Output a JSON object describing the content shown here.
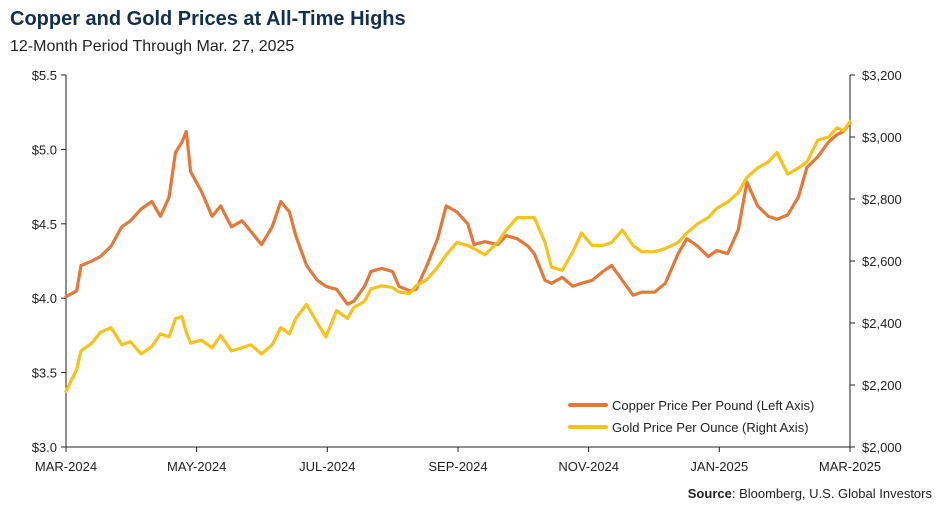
{
  "title": "Copper and Gold Prices at All-Time Highs",
  "subtitle": "12-Month Period Through Mar. 27, 2025",
  "source_label": "Source",
  "source_text": ": Bloomberg, U.S. Global Investors",
  "colors": {
    "copper": "#e2783a",
    "gold": "#f7c21b",
    "axis": "#222222"
  },
  "chart_data": {
    "type": "line",
    "x_ticks": [
      "MAR-2024",
      "MAY-2024",
      "JUL-2024",
      "SEP-2024",
      "NOV-2024",
      "JAN-2025",
      "MAR-2025"
    ],
    "left_axis": {
      "ticks": [
        "$3.0",
        "$3.5",
        "$4.0",
        "$4.5",
        "$5.0",
        "$5.5"
      ],
      "range": [
        3.0,
        5.5
      ]
    },
    "right_axis": {
      "ticks": [
        "$2,000",
        "$2,200",
        "$2,400",
        "$2,600",
        "$2,800",
        "$3,000",
        "$3,200"
      ],
      "range": [
        2000,
        3200
      ]
    },
    "x_range": [
      "2024-03-27",
      "2025-03-27"
    ],
    "grid": false,
    "legend_position": "bottom-right",
    "series": [
      {
        "name": "Copper Price Per Pound (Left Axis)",
        "axis": "left",
        "dates": [
          "2024-03-27",
          "2024-04-01",
          "2024-04-03",
          "2024-04-08",
          "2024-04-12",
          "2024-04-17",
          "2024-04-22",
          "2024-04-26",
          "2024-05-01",
          "2024-05-06",
          "2024-05-10",
          "2024-05-14",
          "2024-05-17",
          "2024-05-20",
          "2024-05-22",
          "2024-05-24",
          "2024-05-29",
          "2024-06-03",
          "2024-06-07",
          "2024-06-12",
          "2024-06-17",
          "2024-06-21",
          "2024-06-26",
          "2024-07-01",
          "2024-07-05",
          "2024-07-09",
          "2024-07-12",
          "2024-07-17",
          "2024-07-22",
          "2024-07-26",
          "2024-07-31",
          "2024-08-05",
          "2024-08-08",
          "2024-08-13",
          "2024-08-16",
          "2024-08-21",
          "2024-08-26",
          "2024-08-29",
          "2024-09-03",
          "2024-09-06",
          "2024-09-11",
          "2024-09-16",
          "2024-09-20",
          "2024-09-25",
          "2024-09-30",
          "2024-10-03",
          "2024-10-08",
          "2024-10-14",
          "2024-10-18",
          "2024-10-23",
          "2024-10-28",
          "2024-10-31",
          "2024-11-05",
          "2024-11-08",
          "2024-11-13",
          "2024-11-18",
          "2024-11-22",
          "2024-11-27",
          "2024-12-02",
          "2024-12-06",
          "2024-12-11",
          "2024-12-16",
          "2024-12-20",
          "2024-12-26",
          "2024-12-31",
          "2025-01-06",
          "2025-01-10",
          "2025-01-15",
          "2025-01-20",
          "2025-01-24",
          "2025-01-29",
          "2025-02-03",
          "2025-02-07",
          "2025-02-12",
          "2025-02-17",
          "2025-02-21",
          "2025-02-26",
          "2025-03-03",
          "2025-03-07",
          "2025-03-12",
          "2025-03-17",
          "2025-03-21",
          "2025-03-24",
          "2025-03-27"
        ],
        "values": [
          4.01,
          4.05,
          4.22,
          4.25,
          4.28,
          4.35,
          4.48,
          4.52,
          4.6,
          4.65,
          4.55,
          4.68,
          4.98,
          5.05,
          5.12,
          4.85,
          4.72,
          4.55,
          4.62,
          4.48,
          4.52,
          4.45,
          4.36,
          4.48,
          4.65,
          4.58,
          4.42,
          4.22,
          4.12,
          4.08,
          4.06,
          3.96,
          3.98,
          4.08,
          4.18,
          4.2,
          4.18,
          4.08,
          4.05,
          4.06,
          4.22,
          4.4,
          4.62,
          4.58,
          4.5,
          4.36,
          4.38,
          4.36,
          4.42,
          4.4,
          4.35,
          4.3,
          4.12,
          4.1,
          4.14,
          4.08,
          4.1,
          4.12,
          4.18,
          4.22,
          4.12,
          4.02,
          4.04,
          4.04,
          4.1,
          4.3,
          4.4,
          4.35,
          4.28,
          4.32,
          4.3,
          4.46,
          4.78,
          4.62,
          4.55,
          4.53,
          4.56,
          4.68,
          4.88,
          4.95,
          5.05,
          5.1,
          5.12,
          5.18
        ]
      },
      {
        "name": "Gold Price Per Ounce (Right Axis)",
        "axis": "right",
        "dates": [
          "2024-03-27",
          "2024-04-01",
          "2024-04-03",
          "2024-04-08",
          "2024-04-12",
          "2024-04-17",
          "2024-04-22",
          "2024-04-26",
          "2024-05-01",
          "2024-05-06",
          "2024-05-10",
          "2024-05-14",
          "2024-05-17",
          "2024-05-20",
          "2024-05-22",
          "2024-05-24",
          "2024-05-29",
          "2024-06-03",
          "2024-06-07",
          "2024-06-12",
          "2024-06-17",
          "2024-06-21",
          "2024-06-26",
          "2024-07-01",
          "2024-07-05",
          "2024-07-09",
          "2024-07-12",
          "2024-07-17",
          "2024-07-22",
          "2024-07-26",
          "2024-07-31",
          "2024-08-05",
          "2024-08-08",
          "2024-08-13",
          "2024-08-16",
          "2024-08-21",
          "2024-08-26",
          "2024-08-29",
          "2024-09-03",
          "2024-09-06",
          "2024-09-11",
          "2024-09-16",
          "2024-09-20",
          "2024-09-25",
          "2024-09-30",
          "2024-10-03",
          "2024-10-08",
          "2024-10-14",
          "2024-10-18",
          "2024-10-23",
          "2024-10-28",
          "2024-10-31",
          "2024-11-05",
          "2024-11-08",
          "2024-11-13",
          "2024-11-18",
          "2024-11-22",
          "2024-11-27",
          "2024-12-02",
          "2024-12-06",
          "2024-12-11",
          "2024-12-16",
          "2024-12-20",
          "2024-12-26",
          "2024-12-31",
          "2025-01-06",
          "2025-01-10",
          "2025-01-15",
          "2025-01-20",
          "2025-01-24",
          "2025-01-29",
          "2025-02-03",
          "2025-02-07",
          "2025-02-12",
          "2025-02-17",
          "2025-02-21",
          "2025-02-26",
          "2025-03-03",
          "2025-03-07",
          "2025-03-12",
          "2025-03-17",
          "2025-03-21",
          "2025-03-24",
          "2025-03-27"
        ],
        "values": [
          2180,
          2250,
          2310,
          2335,
          2370,
          2385,
          2330,
          2340,
          2300,
          2325,
          2365,
          2355,
          2415,
          2420,
          2370,
          2335,
          2345,
          2320,
          2360,
          2310,
          2320,
          2330,
          2300,
          2330,
          2385,
          2365,
          2415,
          2460,
          2400,
          2355,
          2440,
          2415,
          2450,
          2470,
          2510,
          2520,
          2515,
          2500,
          2495,
          2520,
          2540,
          2580,
          2620,
          2660,
          2650,
          2640,
          2620,
          2660,
          2700,
          2740,
          2740,
          2740,
          2660,
          2580,
          2570,
          2630,
          2690,
          2650,
          2650,
          2660,
          2700,
          2650,
          2630,
          2630,
          2640,
          2660,
          2690,
          2720,
          2740,
          2770,
          2790,
          2820,
          2870,
          2900,
          2920,
          2950,
          2880,
          2900,
          2920,
          2990,
          3000,
          3030,
          3020,
          3050
        ]
      }
    ]
  }
}
